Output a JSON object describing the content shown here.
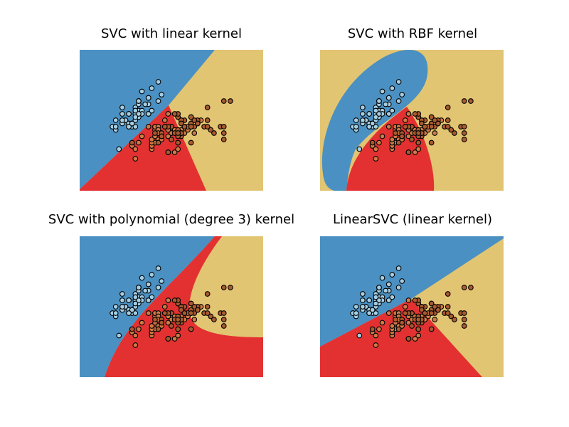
{
  "chart_data": {
    "type": "scatter",
    "titles": [
      "SVC with linear kernel",
      "SVC with RBF kernel",
      "SVC with polynomial (degree 3) kernel",
      "LinearSVC (linear kernel)"
    ],
    "xlim": [
      3.3,
      8.9
    ],
    "ylim": [
      1.0,
      5.4
    ],
    "series": [
      {
        "color": "#a6cee3",
        "x": [
          5.1,
          4.9,
          4.7,
          4.6,
          5.0,
          5.4,
          4.6,
          5.0,
          4.4,
          4.9,
          5.4,
          4.8,
          4.8,
          4.3,
          5.8,
          5.7,
          5.4,
          5.1,
          5.7,
          5.1,
          5.4,
          5.1,
          4.6,
          5.1,
          4.8,
          5.0,
          5.0,
          5.2,
          5.2,
          4.7,
          4.8,
          5.4,
          5.2,
          5.5,
          4.9,
          5.0,
          5.5,
          4.9,
          4.4,
          5.1,
          5.0,
          4.5,
          4.4,
          5.0,
          5.1,
          4.8,
          5.1,
          4.6,
          5.3,
          5.0
        ],
        "y": [
          3.5,
          3.0,
          3.2,
          3.1,
          3.6,
          3.9,
          3.4,
          3.4,
          2.9,
          3.1,
          3.7,
          3.4,
          3.0,
          3.0,
          4.0,
          4.4,
          3.9,
          3.5,
          3.8,
          3.8,
          3.4,
          3.7,
          3.6,
          3.3,
          3.4,
          3.0,
          3.4,
          3.5,
          3.4,
          3.2,
          3.1,
          3.4,
          4.1,
          4.2,
          3.1,
          3.2,
          3.5,
          3.1,
          3.0,
          3.4,
          3.5,
          2.3,
          3.2,
          3.5,
          3.8,
          3.0,
          3.8,
          3.2,
          3.7,
          3.3
        ]
      },
      {
        "color": "#d07a45",
        "x": [
          7.0,
          6.4,
          6.9,
          5.5,
          6.5,
          5.7,
          6.3,
          4.9,
          6.6,
          5.2,
          5.0,
          5.9,
          6.0,
          6.1,
          5.6,
          6.7,
          5.6,
          5.8,
          6.2,
          5.6,
          5.9,
          6.1,
          6.3,
          6.1,
          6.4,
          6.6,
          6.8,
          6.7,
          6.0,
          5.7,
          5.5,
          5.5,
          5.8,
          6.0,
          5.4,
          6.0,
          6.7,
          6.3,
          5.6,
          5.5,
          5.5,
          6.1,
          5.8,
          5.0,
          5.6,
          5.7,
          5.7,
          6.2,
          5.1,
          5.7
        ],
        "y": [
          3.2,
          3.2,
          3.1,
          2.3,
          2.8,
          2.8,
          3.3,
          2.4,
          2.9,
          2.7,
          2.0,
          3.0,
          2.2,
          2.9,
          2.9,
          3.1,
          3.0,
          2.7,
          2.2,
          2.5,
          3.2,
          2.8,
          2.5,
          2.8,
          2.9,
          3.0,
          2.8,
          3.0,
          2.9,
          2.6,
          2.4,
          2.4,
          2.7,
          2.7,
          3.0,
          3.4,
          3.1,
          2.3,
          3.0,
          2.5,
          2.6,
          3.0,
          2.6,
          2.3,
          2.7,
          3.0,
          2.9,
          2.9,
          2.5,
          2.8
        ]
      },
      {
        "color": "#a85a30",
        "x": [
          6.3,
          5.8,
          7.1,
          6.3,
          6.5,
          7.6,
          4.9,
          7.3,
          6.7,
          7.2,
          6.5,
          6.4,
          6.8,
          5.7,
          5.8,
          6.4,
          6.5,
          7.7,
          7.7,
          6.0,
          6.9,
          5.6,
          7.7,
          6.3,
          6.7,
          7.2,
          6.2,
          6.1,
          6.4,
          7.2,
          7.4,
          7.9,
          6.4,
          6.3,
          6.1,
          7.7,
          6.3,
          6.4,
          6.0,
          6.9,
          6.7,
          6.9,
          5.8,
          6.8,
          6.7,
          6.7,
          6.3,
          6.5,
          6.2,
          5.9
        ],
        "y": [
          3.3,
          2.7,
          3.0,
          2.9,
          3.0,
          3.0,
          2.5,
          2.9,
          2.5,
          3.6,
          3.2,
          2.7,
          3.0,
          2.5,
          2.8,
          3.2,
          3.0,
          3.8,
          2.6,
          2.2,
          3.2,
          2.8,
          2.8,
          2.7,
          3.3,
          3.2,
          2.8,
          3.0,
          2.8,
          3.0,
          2.8,
          3.8,
          2.8,
          2.8,
          2.6,
          3.0,
          3.4,
          3.1,
          3.0,
          3.1,
          3.1,
          3.1,
          2.7,
          3.2,
          3.3,
          3.0,
          2.5,
          3.0,
          3.4,
          3.0
        ]
      }
    ]
  }
}
